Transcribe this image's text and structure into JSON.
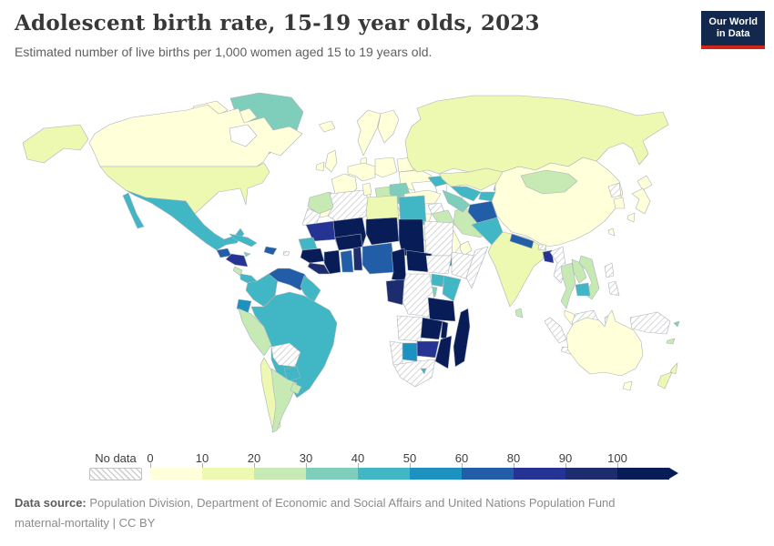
{
  "header": {
    "title": "Adolescent birth rate, 15-19 year olds, 2023",
    "subtitle": "Estimated number of live births per 1,000 women aged 15 to 19 years old.",
    "logo": {
      "line1": "Our World",
      "line2": "in Data"
    }
  },
  "footer": {
    "source_label": "Data source:",
    "source_text": " Population Division, Department of Economic and Social Affairs and United Nations Population Fund",
    "license": {
      "dataset": "maternal-mortality",
      "divider": " | ",
      "license": "CC BY"
    }
  },
  "chart_data": {
    "type": "choropleth-map",
    "title": "Adolescent birth rate, 15-19 year olds, 2023",
    "unit": "live births per 1,000 women aged 15 to 19",
    "year": "2023",
    "legend": {
      "no_data_label": "No data",
      "bins": [
        {
          "tick": "0",
          "range": "0-10",
          "color": "#ffffd9"
        },
        {
          "tick": "10",
          "range": "10-20",
          "color": "#edf8b1"
        },
        {
          "tick": "20",
          "range": "20-30",
          "color": "#c7e9b4"
        },
        {
          "tick": "30",
          "range": "30-40",
          "color": "#7fcdbb"
        },
        {
          "tick": "40",
          "range": "40-50",
          "color": "#41b6c4"
        },
        {
          "tick": "50",
          "range": "50-60",
          "color": "#1d91c0"
        },
        {
          "tick": "60",
          "range": "60-80",
          "color": "#225ea8"
        },
        {
          "tick": "80",
          "range": "80-90",
          "color": "#253494"
        },
        {
          "tick": "90",
          "range": "90-100",
          "color": "#1c2c6e"
        },
        {
          "tick": "100",
          "range": "100+",
          "color": "#081d58"
        }
      ]
    },
    "countries": {
      "canada": {
        "label": "Canada",
        "range": "0-10",
        "color": "#ffffd9"
      },
      "arctic-islands": {
        "label": "Canadian Arctic",
        "range": "0-10",
        "color": "#ffffd9"
      },
      "greenland": {
        "label": "Greenland",
        "range": "30-40",
        "color": "#7fcdbb"
      },
      "alaska": {
        "label": "United States (Alaska)",
        "range": "10-20",
        "color": "#edf8b1"
      },
      "usa": {
        "label": "United States",
        "range": "10-20",
        "color": "#edf8b1"
      },
      "mexico": {
        "label": "Mexico",
        "range": "40-50",
        "color": "#41b6c4"
      },
      "baja": {
        "label": "Mexico (Baja)",
        "range": "40-50",
        "color": "#41b6c4"
      },
      "guatemala": {
        "label": "Guatemala",
        "range": "60-80",
        "color": "#225ea8"
      },
      "honduras-nicaragua": {
        "label": "Honduras / Nicaragua",
        "range": "80-90",
        "color": "#253494"
      },
      "costa-rica": {
        "label": "Costa Rica",
        "range": "20-30",
        "color": "#c7e9b4"
      },
      "panama": {
        "label": "Panama",
        "range": "40-50",
        "color": "#41b6c4"
      },
      "cuba": {
        "label": "Cuba",
        "range": "40-50",
        "color": "#41b6c4"
      },
      "jamaica": {
        "label": "Jamaica",
        "range": "30-40",
        "color": "#7fcdbb"
      },
      "hispaniola": {
        "label": "Dominican Republic / Haiti",
        "range": "60-80",
        "color": "#225ea8"
      },
      "puerto-rico": {
        "label": "Puerto Rico",
        "range": "no data",
        "color": "no-data"
      },
      "colombia": {
        "label": "Colombia",
        "range": "40-50",
        "color": "#41b6c4"
      },
      "venezuela": {
        "label": "Venezuela",
        "range": "60-80",
        "color": "#225ea8"
      },
      "guyanas": {
        "label": "Guyana / Suriname",
        "range": "40-50",
        "color": "#41b6c4"
      },
      "ecuador": {
        "label": "Ecuador",
        "range": "50-60",
        "color": "#1d91c0"
      },
      "peru": {
        "label": "Peru",
        "range": "20-30",
        "color": "#c7e9b4"
      },
      "brazil": {
        "label": "Brazil",
        "range": "40-50",
        "color": "#41b6c4"
      },
      "bolivia": {
        "label": "Bolivia",
        "range": "no data",
        "color": "no-data"
      },
      "paraguay": {
        "label": "Paraguay",
        "range": "40-50",
        "color": "#41b6c4"
      },
      "chile": {
        "label": "Chile",
        "range": "10-20",
        "color": "#edf8b1"
      },
      "argentina": {
        "label": "Argentina",
        "range": "20-30",
        "color": "#c7e9b4"
      },
      "uruguay": {
        "label": "Uruguay",
        "range": "20-30",
        "color": "#c7e9b4"
      },
      "iceland": {
        "label": "Iceland",
        "range": "0-10",
        "color": "#ffffd9"
      },
      "norway-sweden": {
        "label": "Norway / Sweden",
        "range": "0-10",
        "color": "#ffffd9"
      },
      "finland": {
        "label": "Finland",
        "range": "0-10",
        "color": "#ffffd9"
      },
      "denmark": {
        "label": "Denmark",
        "range": "0-10",
        "color": "#ffffd9"
      },
      "uk": {
        "label": "United Kingdom",
        "range": "0-10",
        "color": "#ffffd9"
      },
      "ireland": {
        "label": "Ireland",
        "range": "0-10",
        "color": "#ffffd9"
      },
      "france": {
        "label": "France",
        "range": "0-10",
        "color": "#ffffd9"
      },
      "germany-central": {
        "label": "Germany / Central Europe",
        "range": "0-10",
        "color": "#ffffd9"
      },
      "poland-baltics": {
        "label": "Poland / Baltics",
        "range": "0-10",
        "color": "#ffffd9"
      },
      "belarus": {
        "label": "Belarus",
        "range": "0-10",
        "color": "#ffffd9"
      },
      "ukraine": {
        "label": "Ukraine",
        "range": "0-10",
        "color": "#ffffd9"
      },
      "iberia": {
        "label": "Spain / Portugal",
        "range": "0-10",
        "color": "#ffffd9"
      },
      "italy": {
        "label": "Italy",
        "range": "0-10",
        "color": "#ffffd9"
      },
      "hungary-serbia": {
        "label": "Hungary / Serbia",
        "range": "20-30",
        "color": "#c7e9b4"
      },
      "romania": {
        "label": "Romania",
        "range": "30-40",
        "color": "#7fcdbb"
      },
      "bulgaria": {
        "label": "Bulgaria",
        "range": "30-40",
        "color": "#7fcdbb"
      },
      "greece": {
        "label": "Greece",
        "range": "0-10",
        "color": "#ffffd9"
      },
      "russia": {
        "label": "Russia",
        "range": "10-20",
        "color": "#edf8b1"
      },
      "caucasus": {
        "label": "Georgia / Azerbaijan",
        "range": "40-50",
        "color": "#41b6c4"
      },
      "turkey": {
        "label": "Turkey",
        "range": "0-10",
        "color": "#ffffd9"
      },
      "syria": {
        "label": "Syria",
        "range": "no data",
        "color": "no-data"
      },
      "jordan-israel": {
        "label": "Jordan / Israel",
        "range": "0-10",
        "color": "#ffffd9"
      },
      "iraq": {
        "label": "Iraq",
        "range": "20-30",
        "color": "#c7e9b4"
      },
      "iran": {
        "label": "Iran",
        "range": "20-30",
        "color": "#c7e9b4"
      },
      "saudi-arabia": {
        "label": "Saudi Arabia",
        "range": "0-10",
        "color": "#ffffd9"
      },
      "yemen": {
        "label": "Yemen",
        "range": "50-60",
        "color": "#1d91c0"
      },
      "oman": {
        "label": "Oman",
        "range": "0-10",
        "color": "#ffffd9"
      },
      "morocco": {
        "label": "Morocco",
        "range": "20-30",
        "color": "#c7e9b4"
      },
      "western-sahara": {
        "label": "Western Sahara",
        "range": "no data",
        "color": "no-data"
      },
      "algeria": {
        "label": "Algeria",
        "range": "no data",
        "color": "no-data"
      },
      "tunisia": {
        "label": "Tunisia",
        "range": "0-10",
        "color": "#ffffd9"
      },
      "libya": {
        "label": "Libya",
        "range": "10-20",
        "color": "#edf8b1"
      },
      "egypt": {
        "label": "Egypt",
        "range": "40-50",
        "color": "#41b6c4"
      },
      "mauritania": {
        "label": "Mauritania",
        "range": "80-90",
        "color": "#253494"
      },
      "mali": {
        "label": "Mali",
        "range": "100+",
        "color": "#081d58"
      },
      "niger": {
        "label": "Niger",
        "range": "100+",
        "color": "#081d58"
      },
      "chad": {
        "label": "Chad",
        "range": "100+",
        "color": "#081d58"
      },
      "sudan": {
        "label": "Sudan",
        "range": "no data",
        "color": "no-data"
      },
      "senegal": {
        "label": "Senegal",
        "range": "40-50",
        "color": "#41b6c4"
      },
      "guinea": {
        "label": "Guinea",
        "range": "100+",
        "color": "#081d58"
      },
      "sierra-leone-liberia": {
        "label": "Sierra Leone / Liberia",
        "range": "90-100",
        "color": "#1c2c6e"
      },
      "ivory-coast": {
        "label": "Cote d'Ivoire",
        "range": "100+",
        "color": "#081d58"
      },
      "ghana": {
        "label": "Ghana",
        "range": "60-80",
        "color": "#225ea8"
      },
      "togo-benin": {
        "label": "Togo / Benin",
        "range": "90-100",
        "color": "#1c2c6e"
      },
      "burkina-faso": {
        "label": "Burkina Faso",
        "range": "100+",
        "color": "#081d58"
      },
      "nigeria": {
        "label": "Nigeria",
        "range": "60-80",
        "color": "#225ea8"
      },
      "cameroon": {
        "label": "Cameroon",
        "range": "100+",
        "color": "#081d58"
      },
      "car": {
        "label": "Central African Republic",
        "range": "100+",
        "color": "#081d58"
      },
      "south-sudan": {
        "label": "South Sudan",
        "range": "no data",
        "color": "no-data"
      },
      "ethiopia": {
        "label": "Ethiopia",
        "range": "no data",
        "color": "no-data"
      },
      "somalia": {
        "label": "Somalia",
        "range": "no data",
        "color": "no-data"
      },
      "uganda": {
        "label": "Uganda",
        "range": "40-50",
        "color": "#41b6c4"
      },
      "kenya": {
        "label": "Kenya",
        "range": "40-50",
        "color": "#41b6c4"
      },
      "rwanda-burundi": {
        "label": "Rwanda / Burundi",
        "range": "30-40",
        "color": "#7fcdbb"
      },
      "drc": {
        "label": "Democratic Republic of Congo",
        "range": "no data",
        "color": "no-data"
      },
      "gabon-congo": {
        "label": "Gabon / Congo",
        "range": "90-100",
        "color": "#1c2c6e"
      },
      "tanzania": {
        "label": "Tanzania",
        "range": "100+",
        "color": "#081d58"
      },
      "angola": {
        "label": "Angola",
        "range": "no data",
        "color": "no-data"
      },
      "zambia": {
        "label": "Zambia",
        "range": "100+",
        "color": "#081d58"
      },
      "malawi": {
        "label": "Malawi",
        "range": "100+",
        "color": "#081d58"
      },
      "mozambique": {
        "label": "Mozambique",
        "range": "100+",
        "color": "#081d58"
      },
      "zimbabwe": {
        "label": "Zimbabwe",
        "range": "80-90",
        "color": "#253494"
      },
      "botswana": {
        "label": "Botswana",
        "range": "50-60",
        "color": "#1d91c0"
      },
      "namibia": {
        "label": "Namibia",
        "range": "no data",
        "color": "no-data"
      },
      "south-africa": {
        "label": "South Africa",
        "range": "no data",
        "color": "no-data"
      },
      "lesotho": {
        "label": "Lesotho / Eswatini",
        "range": "40-50",
        "color": "#41b6c4"
      },
      "madagascar": {
        "label": "Madagascar",
        "range": "100+",
        "color": "#081d58"
      },
      "kazakhstan": {
        "label": "Kazakhstan",
        "range": "10-20",
        "color": "#edf8b1"
      },
      "uzbekistan": {
        "label": "Uzbekistan",
        "range": "40-50",
        "color": "#41b6c4"
      },
      "turkmenistan": {
        "label": "Turkmenistan",
        "range": "30-40",
        "color": "#7fcdbb"
      },
      "kyrgyzstan": {
        "label": "Kyrgyzstan",
        "range": "30-40",
        "color": "#7fcdbb"
      },
      "tajikistan": {
        "label": "Tajikistan",
        "range": "40-50",
        "color": "#41b6c4"
      },
      "afghanistan": {
        "label": "Afghanistan",
        "range": "60-80",
        "color": "#225ea8"
      },
      "pakistan": {
        "label": "Pakistan",
        "range": "40-50",
        "color": "#41b6c4"
      },
      "india": {
        "label": "India",
        "range": "10-20",
        "color": "#edf8b1"
      },
      "nepal": {
        "label": "Nepal",
        "range": "60-80",
        "color": "#225ea8"
      },
      "bhutan": {
        "label": "Bhutan",
        "range": "no data",
        "color": "no-data"
      },
      "bangladesh": {
        "label": "Bangladesh",
        "range": "80-90",
        "color": "#253494"
      },
      "sri-lanka": {
        "label": "Sri Lanka",
        "range": "20-30",
        "color": "#c7e9b4"
      },
      "china": {
        "label": "China",
        "range": "0-10",
        "color": "#ffffd9"
      },
      "mongolia": {
        "label": "Mongolia",
        "range": "20-30",
        "color": "#c7e9b4"
      },
      "north-korea": {
        "label": "North Korea",
        "range": "no data",
        "color": "no-data"
      },
      "south-korea": {
        "label": "South Korea",
        "range": "0-10",
        "color": "#ffffd9"
      },
      "japan-hokkaido": {
        "label": "Japan",
        "range": "0-10",
        "color": "#ffffd9"
      },
      "japan-honshu": {
        "label": "Japan",
        "range": "0-10",
        "color": "#ffffd9"
      },
      "japan-kyushu": {
        "label": "Japan",
        "range": "0-10",
        "color": "#ffffd9"
      },
      "taiwan": {
        "label": "Taiwan",
        "range": "0-10",
        "color": "#ffffd9"
      },
      "myanmar": {
        "label": "Myanmar",
        "range": "no data",
        "color": "no-data"
      },
      "thailand": {
        "label": "Thailand",
        "range": "20-30",
        "color": "#c7e9b4"
      },
      "laos": {
        "label": "Laos",
        "range": "20-30",
        "color": "#c7e9b4"
      },
      "vietnam": {
        "label": "Vietnam",
        "range": "20-30",
        "color": "#c7e9b4"
      },
      "cambodia": {
        "label": "Cambodia",
        "range": "40-50",
        "color": "#41b6c4"
      },
      "malaysia": {
        "label": "Malaysia",
        "range": "0-10",
        "color": "#ffffd9"
      },
      "philippines-north": {
        "label": "Philippines",
        "range": "no data",
        "color": "no-data"
      },
      "philippines-south": {
        "label": "Philippines",
        "range": "no data",
        "color": "no-data"
      },
      "sumatra": {
        "label": "Indonesia",
        "range": "no data",
        "color": "no-data"
      },
      "java": {
        "label": "Indonesia",
        "range": "no data",
        "color": "no-data"
      },
      "borneo": {
        "label": "Indonesia / Malaysia (Borneo)",
        "range": "no data",
        "color": "no-data"
      },
      "sulawesi": {
        "label": "Indonesia",
        "range": "no data",
        "color": "no-data"
      },
      "new-guinea": {
        "label": "Papua New Guinea / Indonesia",
        "range": "no data",
        "color": "no-data"
      },
      "australia": {
        "label": "Australia",
        "range": "0-10",
        "color": "#ffffd9"
      },
      "tasmania": {
        "label": "Australia (Tasmania)",
        "range": "0-10",
        "color": "#ffffd9"
      },
      "new-zealand-north": {
        "label": "New Zealand",
        "range": "10-20",
        "color": "#edf8b1"
      },
      "new-zealand-south": {
        "label": "New Zealand",
        "range": "10-20",
        "color": "#edf8b1"
      },
      "fiji": {
        "label": "Fiji",
        "range": "30-40",
        "color": "#7fcdbb"
      },
      "new-caledonia": {
        "label": "New Caledonia",
        "range": "20-30",
        "color": "#c7e9b4"
      }
    }
  }
}
